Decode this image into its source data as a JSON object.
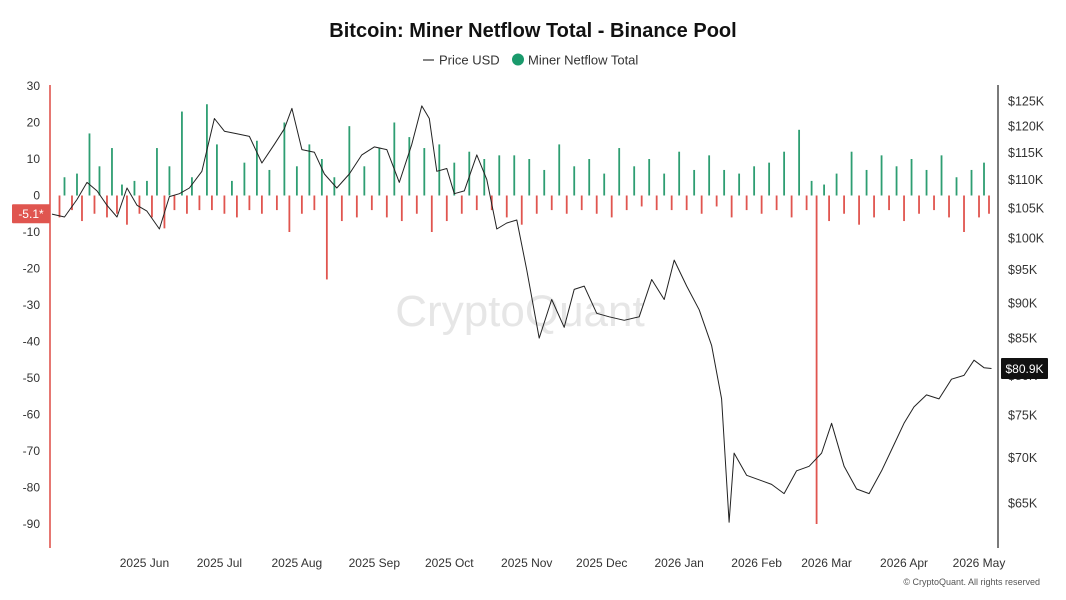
{
  "chart_data": {
    "type": "bar",
    "title": "Bitcoin: Miner Netflow Total - Binance Pool",
    "legend": [
      {
        "name": "Price USD",
        "marker": "line",
        "color": "#333333"
      },
      {
        "name": "Miner Netflow Total",
        "marker": "dot",
        "color": "#1a9a6c"
      }
    ],
    "legend_position": "top-center",
    "grid": false,
    "x_axis": {
      "type": "date",
      "range": [
        "2025-05-10",
        "2026-05-22"
      ],
      "tick_labels": [
        "2025 Jun",
        "2025 Jul",
        "2025 Aug",
        "2025 Sep",
        "2025 Oct",
        "2025 Nov",
        "2025 Dec",
        "2026 Jan",
        "2026 Feb",
        "2026 Mar",
        "2026 Apr",
        "2026 May"
      ],
      "tick_dates": [
        "2025-06-01",
        "2025-07-01",
        "2025-08-01",
        "2025-09-01",
        "2025-10-01",
        "2025-11-01",
        "2025-12-01",
        "2026-01-01",
        "2026-02-01",
        "2026-03-01",
        "2026-04-01",
        "2026-05-01"
      ]
    },
    "y_left": {
      "range": [
        -95,
        30
      ],
      "ticks": [
        30,
        20,
        10,
        0,
        -10,
        -20,
        -30,
        -40,
        -50,
        -60,
        -70,
        -80,
        -90
      ],
      "tick_labels": [
        "30",
        "20",
        "10",
        "0",
        "-10",
        "-20",
        "-30",
        "-40",
        "-50",
        "-60",
        "-70",
        "-80",
        "-90"
      ]
    },
    "y_right": {
      "scale": "log",
      "range": [
        60000,
        128000
      ],
      "ticks": [
        125000,
        120000,
        115000,
        110000,
        105000,
        100000,
        95000,
        90000,
        85000,
        80000,
        75000,
        70000,
        65000
      ],
      "tick_labels": [
        "$125K",
        "$120K",
        "$115K",
        "$110K",
        "$105K",
        "$100K",
        "$95K",
        "$90K",
        "$85K",
        "$80K",
        "$75K",
        "$70K",
        "$65K"
      ]
    },
    "current_netflow_label": "-5.1*",
    "current_price_label": "$80.9K",
    "netflow_colors": {
      "positive": "#2e9e72",
      "negative": "#e0554f"
    },
    "netflow_series": [
      {
        "date": "2025-05-13",
        "value": -6
      },
      {
        "date": "2025-05-15",
        "value": 5
      },
      {
        "date": "2025-05-18",
        "value": -4
      },
      {
        "date": "2025-05-20",
        "value": 6
      },
      {
        "date": "2025-05-22",
        "value": -7
      },
      {
        "date": "2025-05-25",
        "value": 17
      },
      {
        "date": "2025-05-27",
        "value": -5
      },
      {
        "date": "2025-05-29",
        "value": 8
      },
      {
        "date": "2025-06-01",
        "value": -6
      },
      {
        "date": "2025-06-03",
        "value": 13
      },
      {
        "date": "2025-06-05",
        "value": -5
      },
      {
        "date": "2025-06-07",
        "value": 3
      },
      {
        "date": "2025-06-09",
        "value": -8
      },
      {
        "date": "2025-06-12",
        "value": 4
      },
      {
        "date": "2025-06-14",
        "value": -5
      },
      {
        "date": "2025-06-17",
        "value": 4
      },
      {
        "date": "2025-06-19",
        "value": -6
      },
      {
        "date": "2025-06-21",
        "value": 13
      },
      {
        "date": "2025-06-24",
        "value": -9
      },
      {
        "date": "2025-06-26",
        "value": 8
      },
      {
        "date": "2025-06-28",
        "value": -4
      },
      {
        "date": "2025-07-01",
        "value": 23
      },
      {
        "date": "2025-07-03",
        "value": -5
      },
      {
        "date": "2025-07-05",
        "value": 5
      },
      {
        "date": "2025-07-08",
        "value": -4
      },
      {
        "date": "2025-07-11",
        "value": 25
      },
      {
        "date": "2025-07-13",
        "value": -4
      },
      {
        "date": "2025-07-15",
        "value": 14
      },
      {
        "date": "2025-07-18",
        "value": -5
      },
      {
        "date": "2025-07-21",
        "value": 4
      },
      {
        "date": "2025-07-23",
        "value": -6
      },
      {
        "date": "2025-07-26",
        "value": 9
      },
      {
        "date": "2025-07-28",
        "value": -4
      },
      {
        "date": "2025-07-31",
        "value": 15
      },
      {
        "date": "2025-08-02",
        "value": -5
      },
      {
        "date": "2025-08-05",
        "value": 7
      },
      {
        "date": "2025-08-08",
        "value": -4
      },
      {
        "date": "2025-08-11",
        "value": 20
      },
      {
        "date": "2025-08-13",
        "value": -10
      },
      {
        "date": "2025-08-16",
        "value": 8
      },
      {
        "date": "2025-08-18",
        "value": -5
      },
      {
        "date": "2025-08-21",
        "value": 14
      },
      {
        "date": "2025-08-23",
        "value": -4
      },
      {
        "date": "2025-08-26",
        "value": 10
      },
      {
        "date": "2025-08-28",
        "value": -23
      },
      {
        "date": "2025-08-31",
        "value": 5
      },
      {
        "date": "2025-09-03",
        "value": -7
      },
      {
        "date": "2025-09-06",
        "value": 19
      },
      {
        "date": "2025-09-09",
        "value": -6
      },
      {
        "date": "2025-09-12",
        "value": 8
      },
      {
        "date": "2025-09-15",
        "value": -4
      },
      {
        "date": "2025-09-18",
        "value": 13
      },
      {
        "date": "2025-09-21",
        "value": -6
      },
      {
        "date": "2025-09-24",
        "value": 20
      },
      {
        "date": "2025-09-27",
        "value": -7
      },
      {
        "date": "2025-09-30",
        "value": 16
      },
      {
        "date": "2025-10-03",
        "value": -5
      },
      {
        "date": "2025-10-06",
        "value": 13
      },
      {
        "date": "2025-10-09",
        "value": -10
      },
      {
        "date": "2025-10-12",
        "value": 14
      },
      {
        "date": "2025-10-15",
        "value": -7
      },
      {
        "date": "2025-10-18",
        "value": 9
      },
      {
        "date": "2025-10-21",
        "value": -5
      },
      {
        "date": "2025-10-24",
        "value": 12
      },
      {
        "date": "2025-10-27",
        "value": -4
      },
      {
        "date": "2025-10-30",
        "value": 10
      },
      {
        "date": "2025-11-02",
        "value": -4
      },
      {
        "date": "2025-11-05",
        "value": 11
      },
      {
        "date": "2025-11-08",
        "value": -6
      },
      {
        "date": "2025-11-11",
        "value": 11
      },
      {
        "date": "2025-11-14",
        "value": -8
      },
      {
        "date": "2025-11-17",
        "value": 10
      },
      {
        "date": "2025-11-20",
        "value": -5
      },
      {
        "date": "2025-11-23",
        "value": 7
      },
      {
        "date": "2025-11-26",
        "value": -4
      },
      {
        "date": "2025-11-29",
        "value": 14
      },
      {
        "date": "2025-12-02",
        "value": -5
      },
      {
        "date": "2025-12-05",
        "value": 8
      },
      {
        "date": "2025-12-08",
        "value": -4
      },
      {
        "date": "2025-12-11",
        "value": 10
      },
      {
        "date": "2025-12-14",
        "value": -5
      },
      {
        "date": "2025-12-17",
        "value": 6
      },
      {
        "date": "2025-12-20",
        "value": -6
      },
      {
        "date": "2025-12-23",
        "value": 13
      },
      {
        "date": "2025-12-26",
        "value": -4
      },
      {
        "date": "2025-12-29",
        "value": 8
      },
      {
        "date": "2026-01-01",
        "value": -3
      },
      {
        "date": "2026-01-04",
        "value": 10
      },
      {
        "date": "2026-01-07",
        "value": -4
      },
      {
        "date": "2026-01-10",
        "value": 6
      },
      {
        "date": "2026-01-13",
        "value": -4
      },
      {
        "date": "2026-01-16",
        "value": 12
      },
      {
        "date": "2026-01-19",
        "value": -4
      },
      {
        "date": "2026-01-22",
        "value": 7
      },
      {
        "date": "2026-01-25",
        "value": -5
      },
      {
        "date": "2026-01-28",
        "value": 11
      },
      {
        "date": "2026-01-31",
        "value": -3
      },
      {
        "date": "2026-02-03",
        "value": 7
      },
      {
        "date": "2026-02-06",
        "value": -6
      },
      {
        "date": "2026-02-09",
        "value": 6
      },
      {
        "date": "2026-02-12",
        "value": -4
      },
      {
        "date": "2026-02-15",
        "value": 8
      },
      {
        "date": "2026-02-18",
        "value": -5
      },
      {
        "date": "2026-02-21",
        "value": 9
      },
      {
        "date": "2026-02-24",
        "value": -4
      },
      {
        "date": "2026-02-27",
        "value": 12
      },
      {
        "date": "2026-03-02",
        "value": -6
      },
      {
        "date": "2026-03-05",
        "value": 18
      },
      {
        "date": "2026-03-08",
        "value": -4
      },
      {
        "date": "2026-03-10",
        "value": 4
      },
      {
        "date": "2026-03-12",
        "value": -90
      },
      {
        "date": "2026-03-15",
        "value": 3
      },
      {
        "date": "2026-03-17",
        "value": -7
      },
      {
        "date": "2026-03-20",
        "value": 6
      },
      {
        "date": "2026-03-23",
        "value": -5
      },
      {
        "date": "2026-03-26",
        "value": 12
      },
      {
        "date": "2026-03-29",
        "value": -8
      },
      {
        "date": "2026-04-01",
        "value": 7
      },
      {
        "date": "2026-04-04",
        "value": -6
      },
      {
        "date": "2026-04-07",
        "value": 11
      },
      {
        "date": "2026-04-10",
        "value": -4
      },
      {
        "date": "2026-04-13",
        "value": 8
      },
      {
        "date": "2026-04-16",
        "value": -7
      },
      {
        "date": "2026-04-19",
        "value": 10
      },
      {
        "date": "2026-04-22",
        "value": -5
      },
      {
        "date": "2026-04-25",
        "value": 7
      },
      {
        "date": "2026-04-28",
        "value": -4
      },
      {
        "date": "2026-05-01",
        "value": 11
      },
      {
        "date": "2026-05-04",
        "value": -6
      },
      {
        "date": "2026-05-07",
        "value": 5
      },
      {
        "date": "2026-05-10",
        "value": -10
      },
      {
        "date": "2026-05-13",
        "value": 7
      },
      {
        "date": "2026-05-16",
        "value": -6
      },
      {
        "date": "2026-05-18",
        "value": 9
      },
      {
        "date": "2026-05-20",
        "value": -5
      }
    ],
    "price_series": [
      {
        "date": "2025-05-10",
        "value": 104000
      },
      {
        "date": "2025-05-15",
        "value": 103500
      },
      {
        "date": "2025-05-20",
        "value": 106500
      },
      {
        "date": "2025-05-24",
        "value": 109500
      },
      {
        "date": "2025-05-28",
        "value": 108000
      },
      {
        "date": "2025-06-01",
        "value": 105500
      },
      {
        "date": "2025-06-05",
        "value": 103500
      },
      {
        "date": "2025-06-09",
        "value": 108500
      },
      {
        "date": "2025-06-13",
        "value": 105500
      },
      {
        "date": "2025-06-17",
        "value": 104500
      },
      {
        "date": "2025-06-22",
        "value": 101500
      },
      {
        "date": "2025-06-26",
        "value": 107000
      },
      {
        "date": "2025-06-30",
        "value": 107500
      },
      {
        "date": "2025-07-04",
        "value": 108500
      },
      {
        "date": "2025-07-09",
        "value": 111500
      },
      {
        "date": "2025-07-14",
        "value": 121500
      },
      {
        "date": "2025-07-18",
        "value": 119000
      },
      {
        "date": "2025-07-23",
        "value": 118500
      },
      {
        "date": "2025-07-28",
        "value": 118000
      },
      {
        "date": "2025-08-02",
        "value": 113000
      },
      {
        "date": "2025-08-07",
        "value": 116500
      },
      {
        "date": "2025-08-11",
        "value": 119500
      },
      {
        "date": "2025-08-14",
        "value": 123500
      },
      {
        "date": "2025-08-18",
        "value": 115500
      },
      {
        "date": "2025-08-23",
        "value": 115000
      },
      {
        "date": "2025-08-27",
        "value": 111000
      },
      {
        "date": "2025-09-01",
        "value": 108500
      },
      {
        "date": "2025-09-06",
        "value": 111000
      },
      {
        "date": "2025-09-11",
        "value": 114500
      },
      {
        "date": "2025-09-16",
        "value": 116000
      },
      {
        "date": "2025-09-21",
        "value": 115500
      },
      {
        "date": "2025-09-26",
        "value": 109500
      },
      {
        "date": "2025-10-01",
        "value": 116500
      },
      {
        "date": "2025-10-05",
        "value": 124000
      },
      {
        "date": "2025-10-08",
        "value": 121500
      },
      {
        "date": "2025-10-11",
        "value": 111500
      },
      {
        "date": "2025-10-15",
        "value": 112000
      },
      {
        "date": "2025-10-18",
        "value": 107500
      },
      {
        "date": "2025-10-22",
        "value": 108000
      },
      {
        "date": "2025-10-27",
        "value": 114500
      },
      {
        "date": "2025-10-31",
        "value": 110000
      },
      {
        "date": "2025-11-04",
        "value": 101500
      },
      {
        "date": "2025-11-08",
        "value": 102500
      },
      {
        "date": "2025-11-12",
        "value": 103000
      },
      {
        "date": "2025-11-16",
        "value": 95000
      },
      {
        "date": "2025-11-21",
        "value": 85000
      },
      {
        "date": "2025-11-26",
        "value": 90500
      },
      {
        "date": "2025-12-01",
        "value": 86500
      },
      {
        "date": "2025-12-05",
        "value": 92000
      },
      {
        "date": "2025-12-09",
        "value": 92500
      },
      {
        "date": "2025-12-14",
        "value": 88500
      },
      {
        "date": "2025-12-19",
        "value": 88000
      },
      {
        "date": "2025-12-25",
        "value": 87500
      },
      {
        "date": "2025-12-31",
        "value": 88000
      },
      {
        "date": "2026-01-05",
        "value": 93500
      },
      {
        "date": "2026-01-10",
        "value": 90500
      },
      {
        "date": "2026-01-14",
        "value": 96500
      },
      {
        "date": "2026-01-19",
        "value": 92500
      },
      {
        "date": "2026-01-24",
        "value": 89000
      },
      {
        "date": "2026-01-29",
        "value": 84000
      },
      {
        "date": "2026-02-02",
        "value": 77000
      },
      {
        "date": "2026-02-05",
        "value": 63000
      },
      {
        "date": "2026-02-07",
        "value": 70500
      },
      {
        "date": "2026-02-12",
        "value": 68000
      },
      {
        "date": "2026-02-17",
        "value": 67500
      },
      {
        "date": "2026-02-22",
        "value": 67000
      },
      {
        "date": "2026-02-27",
        "value": 66000
      },
      {
        "date": "2026-03-04",
        "value": 68500
      },
      {
        "date": "2026-03-09",
        "value": 69000
      },
      {
        "date": "2026-03-14",
        "value": 70500
      },
      {
        "date": "2026-03-18",
        "value": 74000
      },
      {
        "date": "2026-03-23",
        "value": 69000
      },
      {
        "date": "2026-03-28",
        "value": 66500
      },
      {
        "date": "2026-04-02",
        "value": 66000
      },
      {
        "date": "2026-04-07",
        "value": 68500
      },
      {
        "date": "2026-04-12",
        "value": 71500
      },
      {
        "date": "2026-04-16",
        "value": 74000
      },
      {
        "date": "2026-04-20",
        "value": 76000
      },
      {
        "date": "2026-04-25",
        "value": 77500
      },
      {
        "date": "2026-04-30",
        "value": 77000
      },
      {
        "date": "2026-05-05",
        "value": 79500
      },
      {
        "date": "2026-05-10",
        "value": 80000
      },
      {
        "date": "2026-05-14",
        "value": 82000
      },
      {
        "date": "2026-05-18",
        "value": 81000
      },
      {
        "date": "2026-05-21",
        "value": 80900
      }
    ]
  },
  "watermark": "CryptoQuant",
  "copyright": "© CryptoQuant. All rights reserved"
}
